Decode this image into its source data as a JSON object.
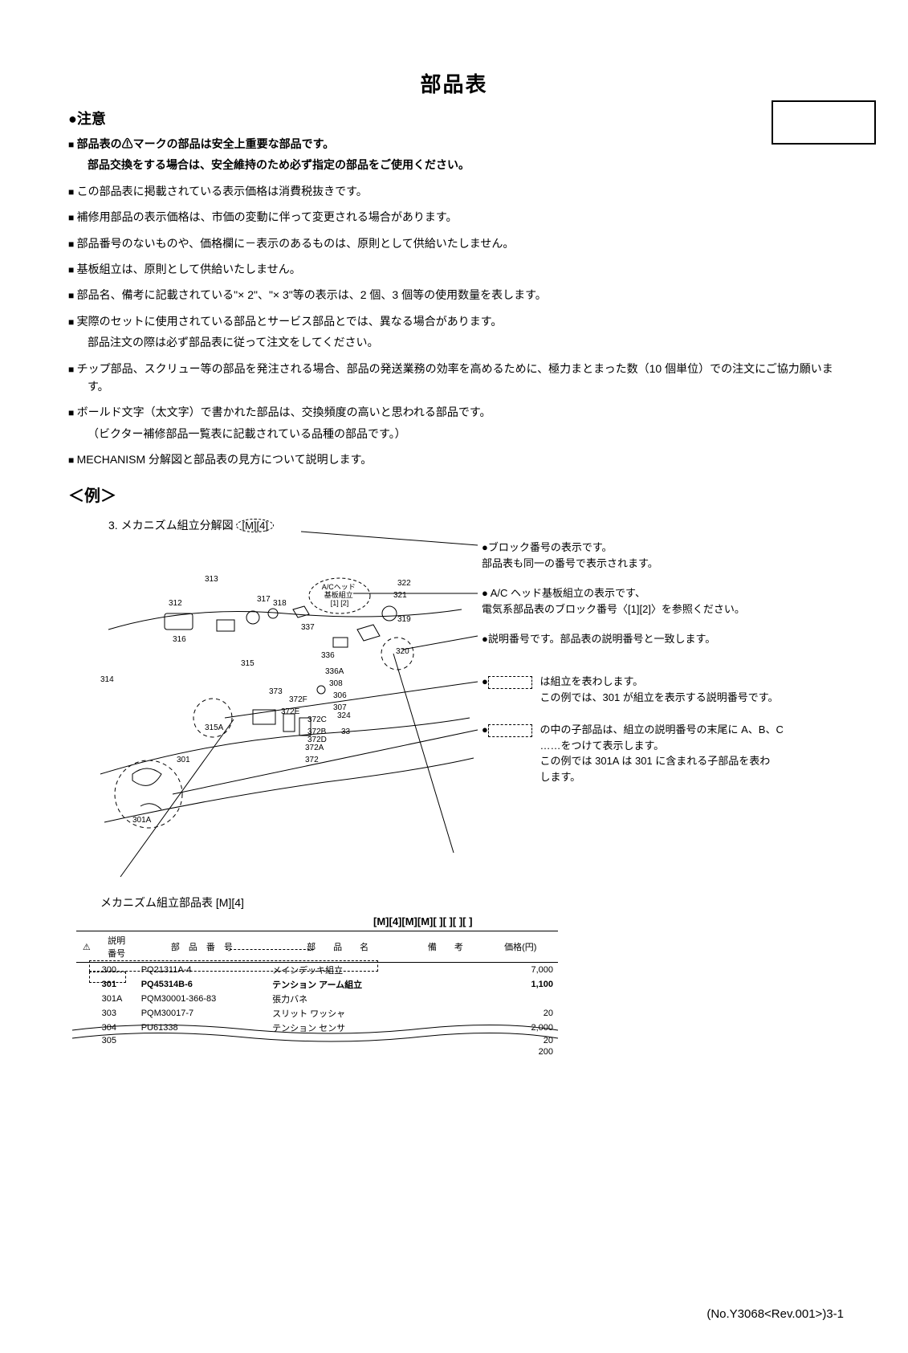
{
  "title": "部品表",
  "notice_header": "●注意",
  "notices": [
    {
      "bold": true,
      "text": "部品表の⚠マークの部品は安全上重要な部品です。",
      "sub": "部品交換をする場合は、安全維持のため必ず指定の部品をご使用ください。"
    },
    {
      "bold": false,
      "text": "この部品表に掲載されている表示価格は消費税抜きです。"
    },
    {
      "bold": false,
      "text": "補修用部品の表示価格は、市価の変動に伴って変更される場合があります。"
    },
    {
      "bold": false,
      "text": "部品番号のないものや、価格欄に－表示のあるものは、原則として供給いたしません。"
    },
    {
      "bold": false,
      "text": "基板組立は、原則として供給いたしません。"
    },
    {
      "bold": false,
      "text": "部品名、備考に記載されている\"× 2\"、\"× 3\"等の表示は、2 個、3 個等の使用数量を表します。"
    },
    {
      "bold": false,
      "text": "実際のセットに使用されている部品とサービス部品とでは、異なる場合があります。",
      "sub": "部品注文の際は必ず部品表に従って注文をしてください。"
    },
    {
      "bold": false,
      "text": "チップ部品、スクリュー等の部品を発注される場合、部品の発送業務の効率を高めるために、極力まとまった数（10 個単位）での注文にご協力願います。"
    },
    {
      "bold": false,
      "text": "ボールド文字（太文字）で書かれた部品は、交換頻度の高いと思われる部品です。",
      "sub": "（ビクター補修部品一覧表に記載されている品種の部品です。）"
    },
    {
      "bold": false,
      "text": "MECHANISM 分解図と部品表の見方について説明します。"
    }
  ],
  "example_header": "＜例＞",
  "diagram_title_prefix": "3. メカニズム組立分解図",
  "diagram_title_badge": "[M][4]",
  "part_labels": [
    "312",
    "313",
    "314",
    "315",
    "315A",
    "316",
    "317",
    "318",
    "319",
    "320",
    "321",
    "322",
    "324",
    "336",
    "336A",
    "337",
    "301",
    "301A",
    "306",
    "307",
    "308",
    "33",
    "372",
    "372A",
    "372B",
    "372C",
    "372D",
    "372E",
    "372F",
    "373"
  ],
  "ac_head_label": "A/Cヘッド\n基板組立\n[1] [2]",
  "annotations": [
    {
      "text": "●ブロック番号の表示です。\n  部品表も同一の番号で表示されます。"
    },
    {
      "text": "● A/C ヘッド基板組立の表示です、\n  電気系部品表のブロック番号〈[1][2]〉を参照ください。"
    },
    {
      "text": "●説明番号です。部品表の説明番号と一致します。"
    },
    {
      "boxed": true,
      "text": "は組立を表わします。\nこの例では、301 が組立を表示する説明番号です。"
    },
    {
      "boxed": true,
      "text": "の中の子部品は、組立の説明番号の末尾に A、B、C\n……をつけて表示します。\nこの例では 301A は 301 に含まれる子部品を表わ\nします。"
    }
  ],
  "parts_table_title": "メカニズム組立部品表 [M][4]",
  "block_codes": "[M][4][M][M][ ][ ][ ][ ]",
  "table_headers": {
    "warn": "⚠",
    "num": "説明\n番号",
    "part": "部　品　番　号",
    "name": "部　　品　　名",
    "remark": "備　　考",
    "price": "価格(円)"
  },
  "table_rows": [
    {
      "num": "300",
      "part": "PQ21311A-4",
      "name": "メインデッキ組立",
      "remark": "",
      "price": "7,000",
      "bold": false,
      "dashed_name": true
    },
    {
      "num": "301",
      "part": "PQ45314B-6",
      "name": "テンション アーム組立",
      "remark": "",
      "price": "1,100",
      "bold": true,
      "boxed": true
    },
    {
      "num": "301A",
      "part": "PQM30001-366-83",
      "name": "張力バネ",
      "remark": "",
      "price": "",
      "bold": false
    },
    {
      "num": "303",
      "part": "PQM30017-7",
      "name": "スリット ワッシャ",
      "remark": "",
      "price": "20",
      "bold": false
    },
    {
      "num": "304",
      "part": "PU61338",
      "name": "テンション センサ",
      "remark": "",
      "price": "2,000",
      "bold": false
    },
    {
      "num": "305",
      "part": "",
      "name": "",
      "remark": "",
      "price": "20",
      "bold": false
    },
    {
      "num": "",
      "part": "",
      "name": "",
      "remark": "",
      "price": "200",
      "bold": false
    }
  ],
  "footer": "(No.Y3068<Rev.001>)3-1"
}
